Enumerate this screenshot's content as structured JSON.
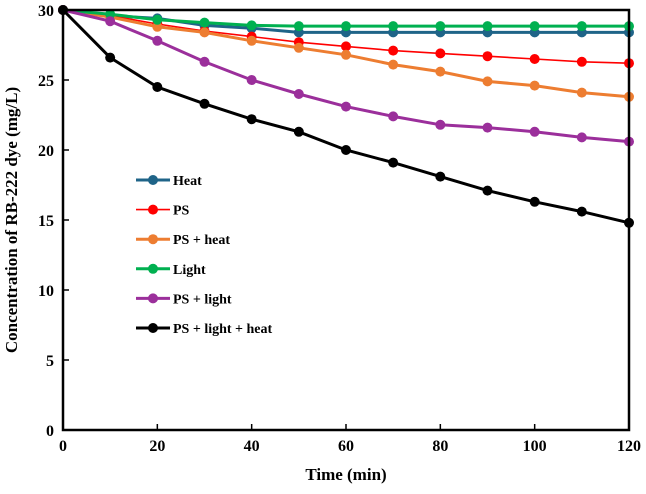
{
  "chart_data": {
    "type": "line",
    "title": "",
    "xlabel": "Time (min)",
    "ylabel": "Concentration of RB-222 dye (mg/L)",
    "xlim": [
      0,
      120
    ],
    "ylim": [
      0,
      30
    ],
    "xticks": [
      0,
      20,
      40,
      60,
      80,
      100,
      120
    ],
    "yticks": [
      0,
      5,
      10,
      15,
      20,
      25,
      30
    ],
    "grid": false,
    "legend_position": "center-left",
    "x": [
      0,
      10,
      20,
      30,
      40,
      50,
      60,
      70,
      80,
      90,
      100,
      110,
      120
    ],
    "series": [
      {
        "name": "Heat",
        "color": "#1f6488",
        "values": [
          30,
          29.6,
          29.4,
          28.9,
          28.7,
          28.4,
          28.4,
          28.4,
          28.4,
          28.4,
          28.4,
          28.4,
          28.4
        ]
      },
      {
        "name": "PS",
        "color": "#ff0000",
        "values": [
          30,
          29.6,
          29.0,
          28.5,
          28.1,
          27.7,
          27.4,
          27.1,
          26.9,
          26.7,
          26.5,
          26.3,
          26.2
        ]
      },
      {
        "name": "PS + heat",
        "color": "#ed7d31",
        "values": [
          30,
          29.5,
          28.8,
          28.4,
          27.8,
          27.3,
          26.8,
          26.1,
          25.6,
          24.9,
          24.6,
          24.1,
          23.8
        ]
      },
      {
        "name": "Light",
        "color": "#00b050",
        "values": [
          30,
          29.7,
          29.3,
          29.1,
          28.9,
          28.85,
          28.85,
          28.85,
          28.85,
          28.85,
          28.85,
          28.85,
          28.85
        ]
      },
      {
        "name": "PS + light",
        "color": "#9b2f9b",
        "values": [
          30,
          29.2,
          27.8,
          26.3,
          25.0,
          24.0,
          23.1,
          22.4,
          21.8,
          21.6,
          21.3,
          20.9,
          20.6
        ]
      },
      {
        "name": "PS + light + heat",
        "color": "#000000",
        "values": [
          30,
          26.6,
          24.5,
          23.3,
          22.2,
          21.3,
          20.0,
          19.1,
          18.1,
          17.1,
          16.3,
          15.6,
          14.8
        ]
      }
    ]
  }
}
